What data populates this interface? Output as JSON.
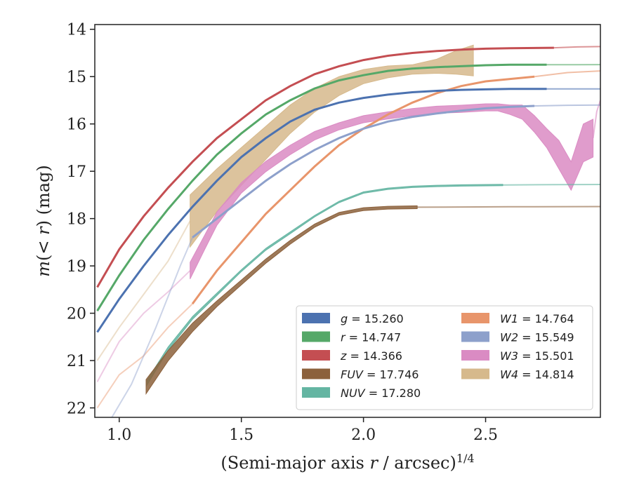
{
  "chart_data": {
    "type": "line",
    "xlabel": "(Semi-major axis r / arcsec)^1/4",
    "ylabel": "m(< r) (mag)",
    "xlim": [
      0.9,
      2.97
    ],
    "ylim": [
      22.2,
      13.9
    ],
    "y_inverted": true,
    "xticks": [
      "1.0",
      "1.5",
      "2.0",
      "2.5"
    ],
    "yticks": [
      "14",
      "15",
      "16",
      "17",
      "18",
      "19",
      "20",
      "21",
      "22"
    ],
    "legend_position": "lower-right",
    "series": [
      {
        "name": "g = 15.260",
        "key": "g",
        "color": "#4c72b0",
        "band": false,
        "points": [
          [
            0.91,
            20.4
          ],
          [
            1.0,
            19.7
          ],
          [
            1.1,
            19.0
          ],
          [
            1.2,
            18.35
          ],
          [
            1.3,
            17.75
          ],
          [
            1.4,
            17.2
          ],
          [
            1.5,
            16.7
          ],
          [
            1.6,
            16.3
          ],
          [
            1.7,
            15.95
          ],
          [
            1.8,
            15.7
          ],
          [
            1.9,
            15.55
          ],
          [
            2.0,
            15.45
          ],
          [
            2.1,
            15.38
          ],
          [
            2.2,
            15.33
          ],
          [
            2.3,
            15.3
          ],
          [
            2.4,
            15.28
          ],
          [
            2.5,
            15.27
          ],
          [
            2.6,
            15.26
          ],
          [
            2.75,
            15.26
          ]
        ],
        "extrap_to": [
          2.97,
          15.26
        ]
      },
      {
        "name": "r = 14.747",
        "key": "r",
        "color": "#55a868",
        "band": false,
        "points": [
          [
            0.91,
            19.95
          ],
          [
            1.0,
            19.2
          ],
          [
            1.1,
            18.45
          ],
          [
            1.2,
            17.8
          ],
          [
            1.3,
            17.2
          ],
          [
            1.4,
            16.65
          ],
          [
            1.5,
            16.2
          ],
          [
            1.6,
            15.8
          ],
          [
            1.7,
            15.5
          ],
          [
            1.8,
            15.25
          ],
          [
            1.9,
            15.08
          ],
          [
            2.0,
            14.97
          ],
          [
            2.1,
            14.88
          ],
          [
            2.2,
            14.83
          ],
          [
            2.3,
            14.8
          ],
          [
            2.4,
            14.78
          ],
          [
            2.5,
            14.76
          ],
          [
            2.6,
            14.75
          ],
          [
            2.75,
            14.75
          ]
        ],
        "extrap_to": [
          2.97,
          14.747
        ]
      },
      {
        "name": "z = 14.366",
        "key": "z",
        "color": "#c44e52",
        "band": false,
        "points": [
          [
            0.91,
            19.45
          ],
          [
            1.0,
            18.65
          ],
          [
            1.1,
            17.95
          ],
          [
            1.2,
            17.35
          ],
          [
            1.3,
            16.8
          ],
          [
            1.4,
            16.3
          ],
          [
            1.5,
            15.9
          ],
          [
            1.6,
            15.5
          ],
          [
            1.7,
            15.2
          ],
          [
            1.8,
            14.95
          ],
          [
            1.9,
            14.78
          ],
          [
            2.0,
            14.65
          ],
          [
            2.1,
            14.56
          ],
          [
            2.2,
            14.5
          ],
          [
            2.3,
            14.46
          ],
          [
            2.4,
            14.43
          ],
          [
            2.5,
            14.41
          ],
          [
            2.6,
            14.4
          ],
          [
            2.78,
            14.39
          ]
        ],
        "extrap_to": [
          2.97,
          14.366
        ]
      },
      {
        "name": "FUV = 17.746",
        "key": "FUV",
        "color": "#8c613c",
        "band": true,
        "points": [
          [
            1.11,
            21.55
          ],
          [
            1.2,
            20.9
          ],
          [
            1.3,
            20.3
          ],
          [
            1.4,
            19.8
          ],
          [
            1.5,
            19.35
          ],
          [
            1.6,
            18.9
          ],
          [
            1.7,
            18.5
          ],
          [
            1.8,
            18.15
          ],
          [
            1.9,
            17.9
          ],
          [
            2.0,
            17.8
          ],
          [
            2.1,
            17.77
          ],
          [
            2.22,
            17.76
          ]
        ],
        "widths": [
          0.3,
          0.22,
          0.18,
          0.12,
          0.1,
          0.09,
          0.08,
          0.07,
          0.06,
          0.06,
          0.06,
          0.06
        ],
        "extrap_to": [
          2.97,
          17.746
        ]
      },
      {
        "name": "NUV = 17.280",
        "key": "NUV",
        "color": "#64b5a2",
        "band": true,
        "points": [
          [
            1.11,
            21.5
          ],
          [
            1.2,
            20.75
          ],
          [
            1.3,
            20.1
          ],
          [
            1.4,
            19.6
          ],
          [
            1.5,
            19.1
          ],
          [
            1.6,
            18.65
          ],
          [
            1.7,
            18.3
          ],
          [
            1.8,
            17.95
          ],
          [
            1.9,
            17.65
          ],
          [
            2.0,
            17.45
          ],
          [
            2.1,
            17.37
          ],
          [
            2.2,
            17.33
          ],
          [
            2.3,
            17.31
          ],
          [
            2.4,
            17.3
          ],
          [
            2.57,
            17.29
          ]
        ],
        "widths": [
          0.1,
          0.07,
          0.06,
          0.05,
          0.04,
          0.04,
          0.04,
          0.03,
          0.03,
          0.03,
          0.03,
          0.03,
          0.03,
          0.03,
          0.03
        ],
        "extrap_to": [
          2.97,
          17.28
        ]
      },
      {
        "name": "W1 = 14.764",
        "key": "W1",
        "color": "#e8956b",
        "band": false,
        "points": [
          [
            1.3,
            19.8
          ],
          [
            1.4,
            19.1
          ],
          [
            1.5,
            18.5
          ],
          [
            1.6,
            17.9
          ],
          [
            1.7,
            17.4
          ],
          [
            1.8,
            16.9
          ],
          [
            1.9,
            16.45
          ],
          [
            2.0,
            16.1
          ],
          [
            2.1,
            15.8
          ],
          [
            2.2,
            15.55
          ],
          [
            2.3,
            15.35
          ],
          [
            2.4,
            15.2
          ],
          [
            2.5,
            15.1
          ],
          [
            2.6,
            15.05
          ],
          [
            2.7,
            15.0
          ]
        ],
        "extrap_from": [
          [
            0.91,
            22.0
          ],
          [
            1.0,
            21.3
          ],
          [
            1.1,
            20.9
          ],
          [
            1.2,
            20.3
          ]
        ],
        "extrap_to": [
          2.97,
          14.88
        ]
      },
      {
        "name": "W2 = 15.549",
        "key": "W2",
        "color": "#8da0cb",
        "band": false,
        "points": [
          [
            1.3,
            18.4
          ],
          [
            1.4,
            18.0
          ],
          [
            1.5,
            17.6
          ],
          [
            1.6,
            17.2
          ],
          [
            1.7,
            16.85
          ],
          [
            1.8,
            16.55
          ],
          [
            1.9,
            16.3
          ],
          [
            2.0,
            16.1
          ],
          [
            2.1,
            15.95
          ],
          [
            2.2,
            15.85
          ],
          [
            2.3,
            15.78
          ],
          [
            2.4,
            15.72
          ],
          [
            2.5,
            15.67
          ],
          [
            2.6,
            15.64
          ],
          [
            2.7,
            15.62
          ]
        ],
        "extrap_from": [
          [
            0.97,
            22.2
          ],
          [
            1.05,
            21.5
          ],
          [
            1.15,
            20.3
          ],
          [
            1.25,
            19.0
          ]
        ],
        "extrap_to": [
          2.97,
          15.6
        ]
      },
      {
        "name": "W3 = 15.501",
        "key": "W3",
        "color": "#da8bc3",
        "band": true,
        "points": [
          [
            1.29,
            19.1
          ],
          [
            1.35,
            18.5
          ],
          [
            1.4,
            18.0
          ],
          [
            1.5,
            17.35
          ],
          [
            1.6,
            16.9
          ],
          [
            1.7,
            16.55
          ],
          [
            1.8,
            16.25
          ],
          [
            1.9,
            16.05
          ],
          [
            2.0,
            15.9
          ],
          [
            2.1,
            15.82
          ],
          [
            2.2,
            15.75
          ],
          [
            2.3,
            15.7
          ],
          [
            2.4,
            15.68
          ],
          [
            2.5,
            15.65
          ],
          [
            2.55,
            15.65
          ],
          [
            2.6,
            15.7
          ],
          [
            2.65,
            15.75
          ],
          [
            2.7,
            16.0
          ],
          [
            2.75,
            16.3
          ],
          [
            2.8,
            16.65
          ],
          [
            2.85,
            17.1
          ],
          [
            2.9,
            16.4
          ],
          [
            2.94,
            16.3
          ]
        ],
        "widths": [
          0.35,
          0.3,
          0.28,
          0.22,
          0.22,
          0.2,
          0.18,
          0.15,
          0.15,
          0.15,
          0.15,
          0.15,
          0.15,
          0.15,
          0.15,
          0.2,
          0.3,
          0.35,
          0.4,
          0.6,
          0.6,
          0.8,
          0.8
        ],
        "extrap_from": [
          [
            0.91,
            21.45
          ],
          [
            1.0,
            20.6
          ],
          [
            1.1,
            20.0
          ],
          [
            1.2,
            19.55
          ]
        ],
        "extrap_to": [
          2.97,
          15.5
        ]
      },
      {
        "name": "W4 = 14.814",
        "key": "W4",
        "color": "#d6b98c",
        "band": true,
        "points": [
          [
            1.29,
            18.05
          ],
          [
            1.4,
            17.4
          ],
          [
            1.5,
            16.9
          ],
          [
            1.6,
            16.4
          ],
          [
            1.7,
            15.9
          ],
          [
            1.8,
            15.5
          ],
          [
            1.9,
            15.2
          ],
          [
            2.0,
            15.0
          ],
          [
            2.1,
            14.9
          ],
          [
            2.2,
            14.85
          ],
          [
            2.3,
            14.78
          ],
          [
            2.38,
            14.7
          ],
          [
            2.45,
            14.66
          ]
        ],
        "widths": [
          1.1,
          0.9,
          0.8,
          0.7,
          0.6,
          0.5,
          0.4,
          0.3,
          0.25,
          0.2,
          0.3,
          0.5,
          0.65
        ],
        "extrap_from": [
          [
            0.91,
            21.0
          ],
          [
            1.0,
            20.3
          ],
          [
            1.1,
            19.6
          ],
          [
            1.2,
            18.9
          ]
        ]
      }
    ]
  }
}
